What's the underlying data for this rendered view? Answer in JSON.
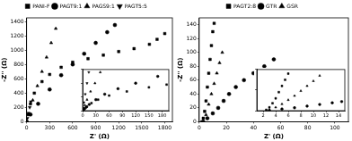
{
  "chart_data": [
    {
      "type": "scatter",
      "x_label": "Z' (Ω)",
      "y_label": "-Z'' (Ω)",
      "xlim": [
        0,
        1900
      ],
      "xticks": [
        0,
        300,
        600,
        900,
        1200,
        1500,
        1800
      ],
      "ylim": [
        0,
        1450
      ],
      "yticks": [
        0,
        200,
        400,
        600,
        800,
        1000,
        1200,
        1400
      ],
      "grid": false,
      "legend": "top",
      "series": [
        {
          "name": "PANI-F",
          "color": "#000000",
          "marker": "square",
          "x": [
            0,
            20,
            50,
            100,
            200,
            300,
            450,
            600,
            800,
            1000,
            1200,
            1400,
            1600,
            1700,
            1800
          ],
          "values": [
            0,
            100,
            250,
            400,
            560,
            660,
            760,
            830,
            880,
            930,
            980,
            1020,
            1080,
            1150,
            1230
          ]
        },
        {
          "name": "PAGT9:1",
          "color": "#000000",
          "marker": "circle",
          "x": [
            0,
            50,
            150,
            300,
            450,
            600,
            750,
            900,
            1050,
            1150
          ],
          "values": [
            0,
            100,
            250,
            450,
            650,
            800,
            950,
            1100,
            1250,
            1350
          ]
        },
        {
          "name": "PAGS9:1",
          "color": "#000000",
          "marker": "triangle",
          "x": [
            0,
            30,
            80,
            140,
            200,
            260,
            320,
            380
          ],
          "values": [
            0,
            100,
            300,
            500,
            700,
            900,
            1100,
            1300
          ]
        },
        {
          "name": "PAGT5:5",
          "color": "#000000",
          "marker": "triangle-down",
          "x": [
            0,
            10,
            25,
            40,
            55
          ],
          "values": [
            0,
            50,
            120,
            200,
            280
          ]
        }
      ],
      "inset": {
        "type": "scatter",
        "tick_labels": "x",
        "xlim": [
          0,
          195
        ],
        "xticks": [
          0,
          30,
          60,
          90,
          120,
          150,
          180
        ],
        "ylim": [
          0,
          300
        ],
        "yticks": [
          0,
          100,
          200,
          300
        ],
        "series": [
          {
            "color": "#000000",
            "marker": "square",
            "x": [
              2,
              5,
              10,
              20,
              35,
              60,
              100,
              150,
              190
            ],
            "values": [
              5,
              15,
              30,
              55,
              80,
              110,
              140,
              170,
              190
            ]
          },
          {
            "color": "#000000",
            "marker": "circle",
            "x": [
              3,
              8,
              15,
              30,
              50,
              80,
              120,
              170
            ],
            "values": [
              10,
              25,
              45,
              80,
              120,
              160,
              200,
              250
            ]
          },
          {
            "color": "#000000",
            "marker": "triangle",
            "x": [
              2,
              5,
              10,
              18,
              28,
              40
            ],
            "values": [
              15,
              40,
              80,
              140,
              200,
              280
            ]
          },
          {
            "color": "#000000",
            "marker": "triangle-down",
            "x": [
              1,
              3,
              6,
              10,
              14
            ],
            "values": [
              20,
              60,
              120,
              200,
              280
            ]
          }
        ]
      }
    },
    {
      "type": "scatter",
      "x_label": "Z' (Ω)",
      "y_label": "-Z'' (Ω)",
      "xlim": [
        0,
        110
      ],
      "xticks": [
        0,
        20,
        40,
        60,
        80,
        100
      ],
      "ylim": [
        0,
        150
      ],
      "yticks": [
        0,
        20,
        40,
        60,
        80,
        100,
        120,
        140
      ],
      "grid": false,
      "legend": "top",
      "series": [
        {
          "name": "PAGT2:8",
          "color": "#000000",
          "marker": "square",
          "x": [
            2,
            3,
            4,
            5,
            6,
            7,
            8,
            9,
            10,
            11
          ],
          "values": [
            0,
            5,
            15,
            30,
            50,
            70,
            90,
            110,
            130,
            142
          ]
        },
        {
          "name": "GTR",
          "color": "#000000",
          "marker": "circle",
          "x": [
            3,
            6,
            10,
            14,
            18,
            22,
            27,
            33,
            40,
            48,
            55
          ],
          "values": [
            0,
            5,
            12,
            20,
            30,
            40,
            50,
            60,
            70,
            80,
            90
          ]
        },
        {
          "name": "GSR",
          "color": "#000000",
          "marker": "triangle",
          "x": [
            3,
            5,
            7,
            9,
            11,
            13,
            15,
            17
          ],
          "values": [
            0,
            10,
            25,
            40,
            55,
            70,
            85,
            100
          ]
        }
      ],
      "inset": {
        "type": "scatter",
        "tick_labels": "x",
        "xlim": [
          1,
          15
        ],
        "xticks": [
          2,
          4,
          6,
          8,
          10,
          12,
          14
        ],
        "ylim": [
          0,
          100
        ],
        "yticks": [
          0,
          50,
          100
        ],
        "series": [
          {
            "color": "#000000",
            "marker": "square",
            "x": [
              2.5,
              3,
              3.5,
              4,
              4.5,
              5,
              5.5,
              6
            ],
            "values": [
              2,
              8,
              18,
              30,
              45,
              60,
              75,
              90
            ]
          },
          {
            "color": "#000000",
            "marker": "circle",
            "x": [
              3,
              5,
              7,
              9,
              11,
              13,
              14.5
            ],
            "values": [
              1,
              4,
              7,
              11,
              15,
              19,
              22
            ]
          },
          {
            "color": "#000000",
            "marker": "triangle",
            "x": [
              3,
              4,
              5,
              6,
              7,
              8,
              9,
              10,
              11
            ],
            "values": [
              2,
              8,
              16,
              26,
              36,
              48,
              60,
              72,
              85
            ]
          }
        ]
      }
    }
  ]
}
